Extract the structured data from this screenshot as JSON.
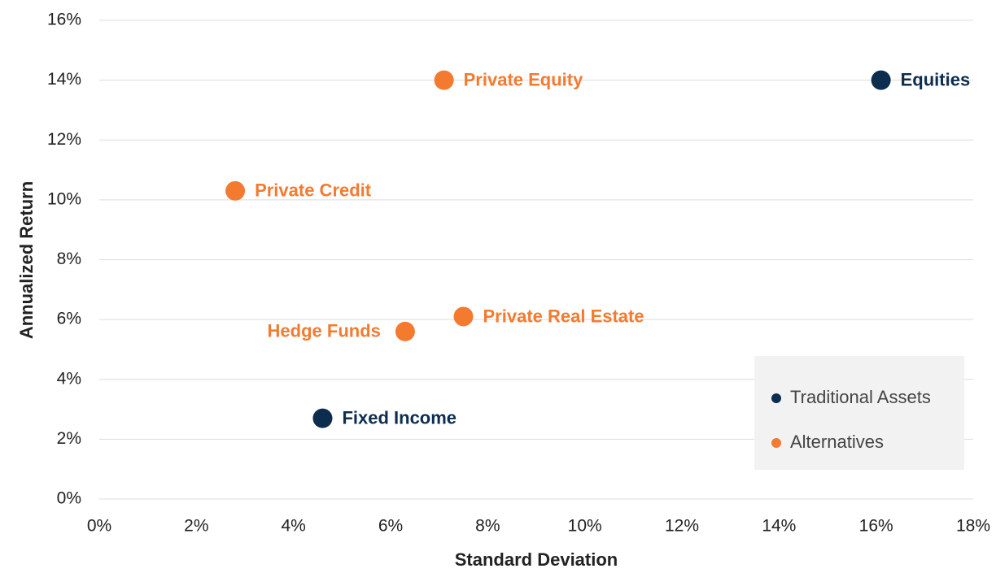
{
  "chart_data": {
    "type": "scatter",
    "x_label": "Standard Deviation",
    "y_label": "Annualized Return",
    "xlim": [
      0,
      18
    ],
    "ylim": [
      0,
      16
    ],
    "xticks": [
      {
        "value": 0,
        "label": "0%"
      },
      {
        "value": 2,
        "label": "2%"
      },
      {
        "value": 4,
        "label": "4%"
      },
      {
        "value": 6,
        "label": "6%"
      },
      {
        "value": 8,
        "label": "8%"
      },
      {
        "value": 10,
        "label": "10%"
      },
      {
        "value": 12,
        "label": "12%"
      },
      {
        "value": 14,
        "label": "14%"
      },
      {
        "value": 16,
        "label": "16%"
      },
      {
        "value": 18,
        "label": "18%"
      }
    ],
    "yticks": [
      {
        "value": 0,
        "label": "0%"
      },
      {
        "value": 2,
        "label": "2%"
      },
      {
        "value": 4,
        "label": "4%"
      },
      {
        "value": 6,
        "label": "6%"
      },
      {
        "value": 8,
        "label": "8%"
      },
      {
        "value": 10,
        "label": "10%"
      },
      {
        "value": 12,
        "label": "12%"
      },
      {
        "value": 14,
        "label": "14%"
      },
      {
        "value": 16,
        "label": "16%"
      }
    ],
    "grid": true,
    "legend": "lower right",
    "series": [
      {
        "name": "Traditional Assets",
        "color": "#0d2d4f",
        "labels": [
          "Equities",
          "Fixed Income"
        ],
        "x": [
          16.1,
          4.6
        ],
        "values": [
          14.0,
          2.7
        ]
      },
      {
        "name": "Alternatives",
        "color": "#f47a30",
        "labels": [
          "Private Equity",
          "Private Credit",
          "Hedge Funds",
          "Private Real Estate"
        ],
        "x": [
          7.1,
          2.8,
          6.3,
          7.5
        ],
        "values": [
          14.0,
          10.3,
          5.6,
          6.1
        ]
      }
    ]
  }
}
